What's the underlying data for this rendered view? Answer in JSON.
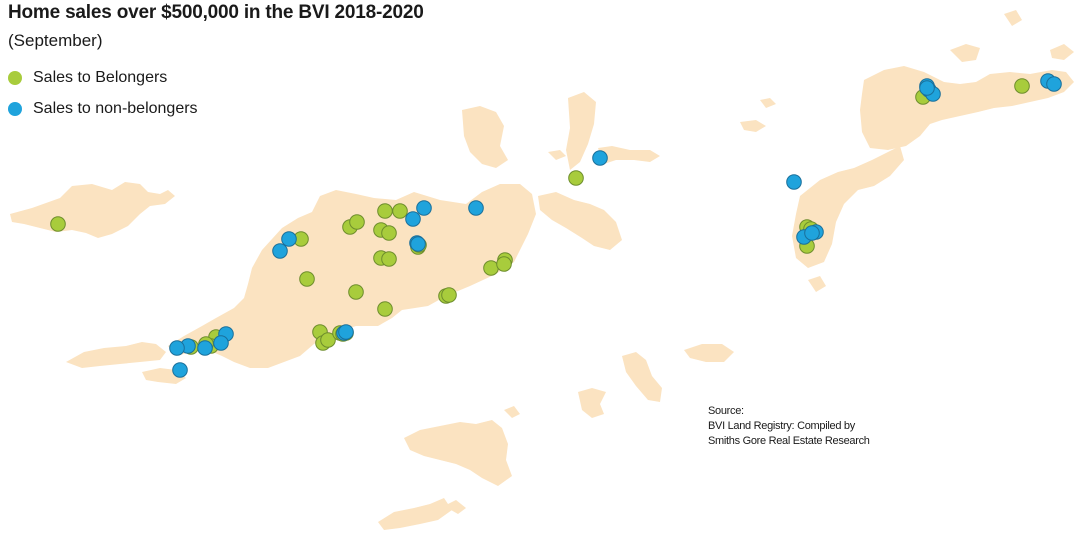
{
  "title": "Home sales over $500,000 in the BVI 2018-2020",
  "subtitle": "(September)",
  "legend": [
    {
      "label": "Sales to Belongers",
      "color": "#a8cc3c"
    },
    {
      "label": "Sales to non-belongers",
      "color": "#1fa3dc"
    }
  ],
  "source": {
    "line1": "Source:",
    "line2": "BVI Land Registry: Compiled by",
    "line3": "Smiths Gore Real Estate Research"
  },
  "colors": {
    "land": "#fbe3c1",
    "belonger": "#a8cc3c",
    "non_belonger": "#1fa3dc",
    "marker_stroke": "#5a7a2a"
  },
  "chart_data": {
    "type": "scatter",
    "series": [
      {
        "name": "Sales to Belongers",
        "count": 36
      },
      {
        "name": "Sales to non-belongers",
        "count": 26
      }
    ]
  }
}
